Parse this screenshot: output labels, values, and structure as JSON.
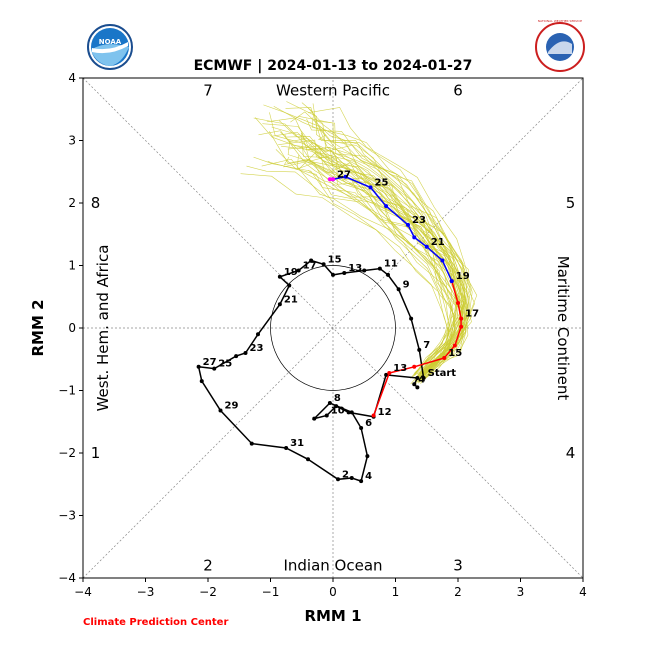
{
  "header": {
    "title": "ECMWF | 2024-01-13 to 2024-01-27",
    "left_logo": "NOAA",
    "right_logo": "NATIONAL WEATHER SERVICE",
    "credit": "Climate Prediction Center"
  },
  "chart_data": {
    "type": "line",
    "title": "ECMWF | 2024-01-13 to 2024-01-27",
    "xlabel": "RMM 1",
    "ylabel": "RMM 2",
    "xlim": [
      -4,
      4
    ],
    "ylim": [
      -4,
      4
    ],
    "x_ticks": [
      "−4",
      "−3",
      "−2",
      "−1",
      "0",
      "1",
      "2",
      "3",
      "4"
    ],
    "y_ticks": [
      "−4",
      "−3",
      "−2",
      "−1",
      "0",
      "1",
      "2",
      "3",
      "4"
    ],
    "grid": "diagonal phase lines",
    "unit_circle_radius": 1,
    "region_labels": {
      "top": "Western Pacific",
      "bottom": "Indian Ocean",
      "left": "West. Hem. and Africa",
      "right": "Maritime Continent"
    },
    "phase_labels": [
      {
        "label": "7",
        "x": -2.0,
        "y": 3.8
      },
      {
        "label": "6",
        "x": 2.0,
        "y": 3.8
      },
      {
        "label": "8",
        "x": -3.8,
        "y": 2.0
      },
      {
        "label": "5",
        "x": 3.8,
        "y": 2.0
      },
      {
        "label": "1",
        "x": -3.8,
        "y": -2.0
      },
      {
        "label": "4",
        "x": 3.8,
        "y": -2.0
      },
      {
        "label": "2",
        "x": -2.0,
        "y": -3.8
      },
      {
        "label": "3",
        "x": 2.0,
        "y": -3.8
      }
    ],
    "series": [
      {
        "color": "#000000",
        "points": [
          {
            "x": 1.35,
            "y": -0.95,
            "label": ""
          },
          {
            "x": 1.3,
            "y": -0.9,
            "label": "4"
          },
          {
            "x": 1.35,
            "y": -0.8,
            "label": ""
          },
          {
            "x": 0.85,
            "y": -0.75,
            "label": ""
          },
          {
            "x": 0.65,
            "y": -1.42,
            "label": "12"
          },
          {
            "x": 0.25,
            "y": -1.35,
            "label": ""
          },
          {
            "x": 0.05,
            "y": -1.25,
            "label": ""
          },
          {
            "x": -0.1,
            "y": -1.4,
            "label": "10"
          },
          {
            "x": -0.3,
            "y": -1.45,
            "label": ""
          },
          {
            "x": -0.05,
            "y": -1.2,
            "label": "8"
          },
          {
            "x": 0.3,
            "y": -1.35,
            "label": ""
          },
          {
            "x": 0.45,
            "y": -1.6,
            "label": "6"
          },
          {
            "x": 0.55,
            "y": -2.05,
            "label": ""
          },
          {
            "x": 0.45,
            "y": -2.45,
            "label": "4"
          },
          {
            "x": 0.3,
            "y": -2.4,
            "label": ""
          },
          {
            "x": 0.08,
            "y": -2.42,
            "label": "2"
          },
          {
            "x": -0.4,
            "y": -2.1,
            "label": ""
          },
          {
            "x": -0.75,
            "y": -1.92,
            "label": "31"
          },
          {
            "x": -1.3,
            "y": -1.85,
            "label": ""
          },
          {
            "x": -1.8,
            "y": -1.32,
            "label": "29"
          },
          {
            "x": -2.1,
            "y": -0.85,
            "label": ""
          },
          {
            "x": -2.15,
            "y": -0.62,
            "label": "27"
          },
          {
            "x": -1.9,
            "y": -0.65,
            "label": "25"
          },
          {
            "x": -1.55,
            "y": -0.45,
            "label": ""
          },
          {
            "x": -1.4,
            "y": -0.4,
            "label": "23"
          },
          {
            "x": -1.2,
            "y": -0.1,
            "label": ""
          },
          {
            "x": -0.85,
            "y": 0.38,
            "label": "21"
          },
          {
            "x": -0.7,
            "y": 0.68,
            "label": ""
          },
          {
            "x": -0.85,
            "y": 0.82,
            "label": "19"
          },
          {
            "x": -0.55,
            "y": 0.92,
            "label": "17"
          },
          {
            "x": -0.35,
            "y": 1.08,
            "label": ""
          },
          {
            "x": -0.15,
            "y": 1.02,
            "label": "15"
          },
          {
            "x": 0.0,
            "y": 0.85,
            "label": ""
          },
          {
            "x": 0.18,
            "y": 0.88,
            "label": "13"
          },
          {
            "x": 0.5,
            "y": 0.92,
            "label": ""
          },
          {
            "x": 0.75,
            "y": 0.95,
            "label": "11"
          },
          {
            "x": 0.88,
            "y": 0.85,
            "label": ""
          },
          {
            "x": 1.05,
            "y": 0.62,
            "label": "9"
          },
          {
            "x": 1.25,
            "y": 0.15,
            "label": ""
          },
          {
            "x": 1.38,
            "y": -0.35,
            "label": "7"
          },
          {
            "x": 1.45,
            "y": -0.8,
            "label": "Start"
          }
        ]
      },
      {
        "color": "#ff0000",
        "points": [
          {
            "x": 0.65,
            "y": -1.4,
            "label": ""
          },
          {
            "x": 0.9,
            "y": -0.72,
            "label": "13"
          },
          {
            "x": 1.3,
            "y": -0.62,
            "label": ""
          },
          {
            "x": 1.78,
            "y": -0.48,
            "label": "15"
          },
          {
            "x": 1.95,
            "y": -0.28,
            "label": ""
          },
          {
            "x": 2.05,
            "y": 0.02,
            "label": ""
          },
          {
            "x": 2.05,
            "y": 0.15,
            "label": "17"
          },
          {
            "x": 2.0,
            "y": 0.4,
            "label": ""
          },
          {
            "x": 1.9,
            "y": 0.75,
            "label": "19"
          }
        ]
      },
      {
        "color": "#0000ff",
        "points": [
          {
            "x": 1.9,
            "y": 0.75,
            "label": ""
          },
          {
            "x": 1.75,
            "y": 1.08,
            "label": ""
          },
          {
            "x": 1.5,
            "y": 1.3,
            "label": "21"
          },
          {
            "x": 1.3,
            "y": 1.45,
            "label": ""
          },
          {
            "x": 1.2,
            "y": 1.65,
            "label": "23"
          },
          {
            "x": 0.85,
            "y": 1.95,
            "label": ""
          },
          {
            "x": 0.6,
            "y": 2.25,
            "label": "25"
          },
          {
            "x": 0.2,
            "y": 2.42,
            "label": ""
          },
          {
            "x": 0.0,
            "y": 2.38,
            "label": "27"
          }
        ]
      },
      {
        "color": "#ff00ff",
        "points": [
          {
            "x": -0.05,
            "y": 2.38,
            "label": ""
          },
          {
            "x": 0.0,
            "y": 2.38,
            "label": ""
          }
        ]
      }
    ],
    "ensemble": {
      "color": "#cccc33",
      "member_count": 50,
      "path_points": [
        {
          "x": 1.35,
          "y": -0.8
        },
        {
          "x": 1.6,
          "y": -0.55
        },
        {
          "x": 1.85,
          "y": -0.3
        },
        {
          "x": 2.0,
          "y": 0.05
        },
        {
          "x": 2.0,
          "y": 0.45
        },
        {
          "x": 1.85,
          "y": 0.85
        },
        {
          "x": 1.6,
          "y": 1.25
        },
        {
          "x": 1.3,
          "y": 1.6
        },
        {
          "x": 0.95,
          "y": 1.95
        },
        {
          "x": 0.55,
          "y": 2.3
        },
        {
          "x": 0.15,
          "y": 2.55
        },
        {
          "x": -0.2,
          "y": 2.75
        },
        {
          "x": -0.55,
          "y": 2.95
        },
        {
          "x": -0.85,
          "y": 3.1
        }
      ],
      "spread_start": 0.12,
      "spread_end": 0.75
    }
  }
}
